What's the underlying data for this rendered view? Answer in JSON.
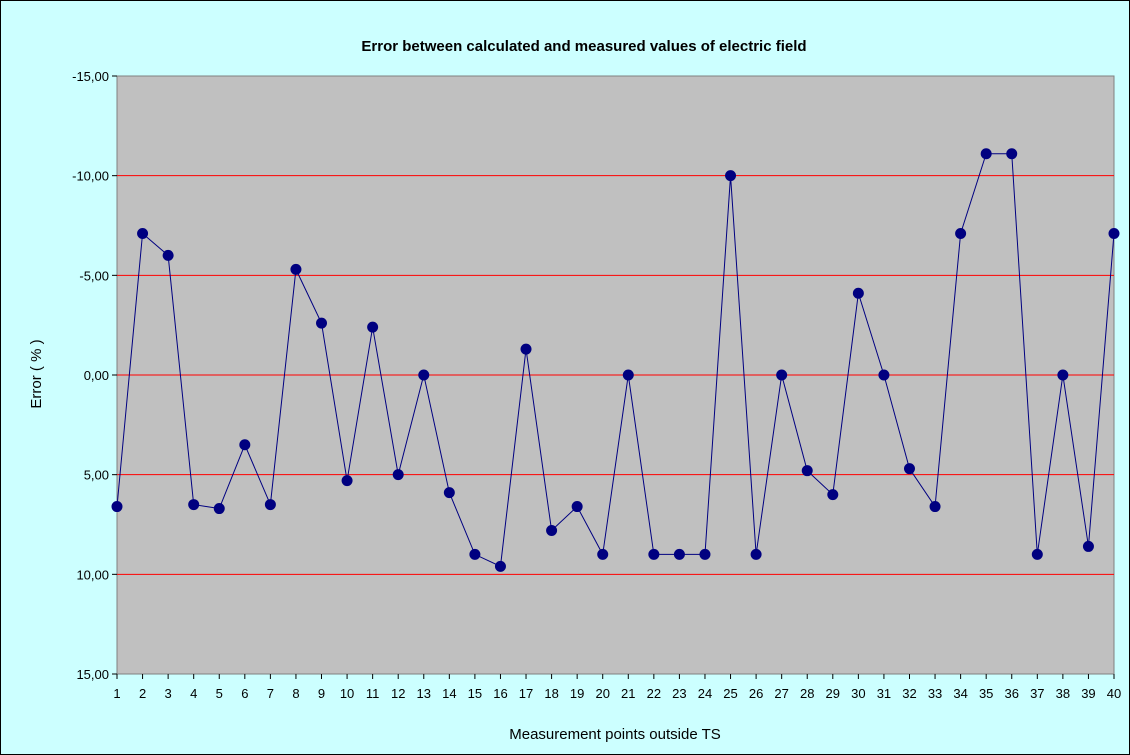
{
  "chart_data": {
    "type": "line",
    "title": "Error between calculated and measured values of electric field",
    "xlabel": "Measurement points outside TS",
    "ylabel": "Error ( % )",
    "categories": [
      "1",
      "2",
      "3",
      "4",
      "5",
      "6",
      "7",
      "8",
      "9",
      "10",
      "11",
      "12",
      "13",
      "14",
      "15",
      "16",
      "17",
      "18",
      "19",
      "20",
      "21",
      "22",
      "23",
      "24",
      "25",
      "26",
      "27",
      "28",
      "29",
      "30",
      "31",
      "32",
      "33",
      "34",
      "35",
      "36",
      "37",
      "38",
      "39",
      "40"
    ],
    "series": [
      {
        "values": [
          6.6,
          -7.1,
          -6.0,
          6.5,
          6.7,
          3.5,
          6.5,
          -5.3,
          -2.6,
          5.3,
          -2.4,
          5.0,
          0.0,
          5.9,
          9.0,
          9.6,
          -1.3,
          7.8,
          6.6,
          9.0,
          0.0,
          9.0,
          9.0,
          9.0,
          -10.0,
          9.0,
          0.0,
          4.8,
          6.0,
          -4.1,
          0.0,
          4.7,
          6.6,
          -7.1,
          -11.1,
          -11.1,
          9.0,
          0.0,
          8.6,
          -7.1
        ]
      }
    ],
    "ylim": [
      -15,
      15
    ],
    "y_axis_reversed": true,
    "yticks": [
      -15,
      -10,
      -5,
      0,
      5,
      10,
      15
    ],
    "ytick_labels": [
      "-15,00",
      "-10,00",
      "-5,00",
      "0,00",
      "5,00",
      "10,00",
      "15,00"
    ],
    "grid": true,
    "legend": "none",
    "colors": {
      "background": "#ccffff",
      "plot_area": "#c0c0c0",
      "gridline": "#ff0000",
      "line": "#000080",
      "marker": "#000080"
    }
  }
}
